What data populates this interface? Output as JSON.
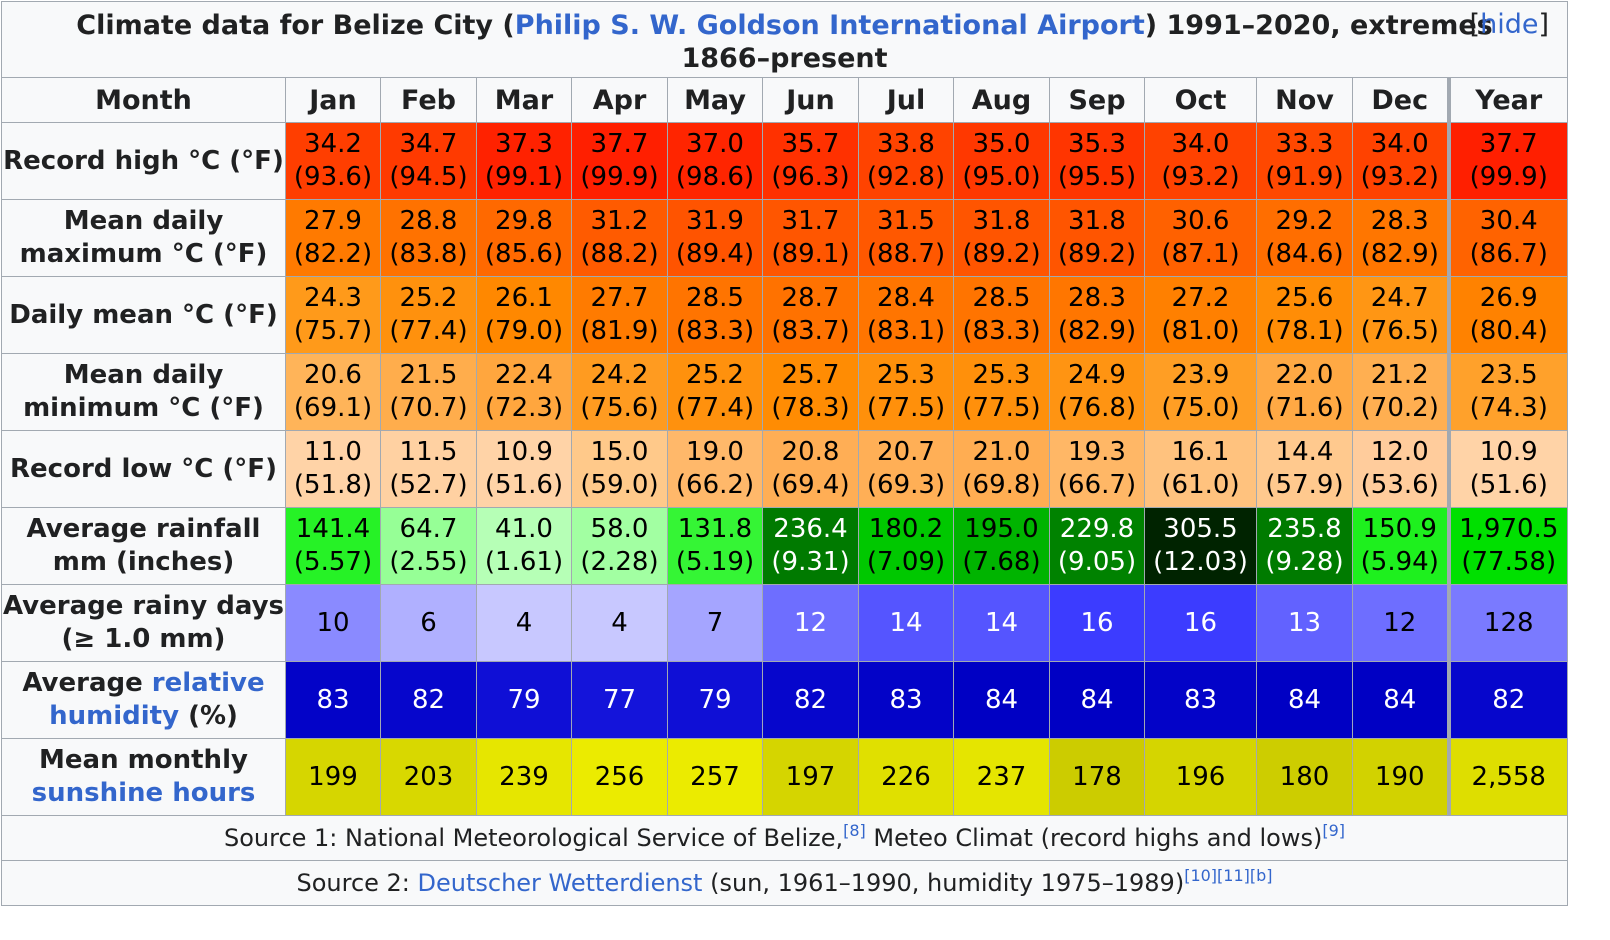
{
  "title_text": "Climate data for Belize City (",
  "title_link": "Philip S. W. Goldson International Airport",
  "title_suffix": ") 1991–2020, extremes 1866–present",
  "hide_open": "[",
  "hide_label": "hide",
  "hide_close": "]",
  "headers": {
    "month": "Month",
    "months": [
      "Jan",
      "Feb",
      "Mar",
      "Apr",
      "May",
      "Jun",
      "Jul",
      "Aug",
      "Sep",
      "Oct",
      "Nov",
      "Dec"
    ],
    "year": "Year"
  },
  "rows": [
    {
      "label": "Record high °C (°F)",
      "values": [
        [
          "34.2",
          "(93.6)"
        ],
        [
          "34.7",
          "(94.5)"
        ],
        [
          "37.3",
          "(99.1)"
        ],
        [
          "37.7",
          "(99.9)"
        ],
        [
          "37.0",
          "(98.6)"
        ],
        [
          "35.7",
          "(96.3)"
        ],
        [
          "33.8",
          "(92.8)"
        ],
        [
          "35.0",
          "(95.0)"
        ],
        [
          "35.3",
          "(95.5)"
        ],
        [
          "34.0",
          "(93.2)"
        ],
        [
          "33.3",
          "(91.9)"
        ],
        [
          "34.0",
          "(93.2)"
        ],
        [
          "37.7",
          "(99.9)"
        ]
      ],
      "bg": [
        "#ff3e00",
        "#ff3a00",
        "#ff2200",
        "#ff1f00",
        "#ff2500",
        "#ff3100",
        "#ff4300",
        "#ff3800",
        "#ff3500",
        "#ff4200",
        "#ff4800",
        "#ff4200",
        "#ff1f00"
      ],
      "fg": "#000000"
    },
    {
      "label": "Mean daily maximum °C (°F)",
      "values": [
        [
          "27.9",
          "(82.2)"
        ],
        [
          "28.8",
          "(83.8)"
        ],
        [
          "29.8",
          "(85.6)"
        ],
        [
          "31.2",
          "(88.2)"
        ],
        [
          "31.9",
          "(89.4)"
        ],
        [
          "31.7",
          "(89.1)"
        ],
        [
          "31.5",
          "(88.7)"
        ],
        [
          "31.8",
          "(89.2)"
        ],
        [
          "31.8",
          "(89.2)"
        ],
        [
          "30.6",
          "(87.1)"
        ],
        [
          "29.2",
          "(84.6)"
        ],
        [
          "28.3",
          "(82.9)"
        ],
        [
          "30.4",
          "(86.7)"
        ]
      ],
      "bg": [
        "#ff7a00",
        "#ff7200",
        "#ff6900",
        "#ff5b00",
        "#ff5400",
        "#ff5600",
        "#ff5800",
        "#ff5500",
        "#ff5500",
        "#ff6100",
        "#ff6e00",
        "#ff7600",
        "#ff6300"
      ],
      "fg": "#000000"
    },
    {
      "label": "Daily mean °C (°F)",
      "values": [
        [
          "24.3",
          "(75.7)"
        ],
        [
          "25.2",
          "(77.4)"
        ],
        [
          "26.1",
          "(79.0)"
        ],
        [
          "27.7",
          "(81.9)"
        ],
        [
          "28.5",
          "(83.3)"
        ],
        [
          "28.7",
          "(83.7)"
        ],
        [
          "28.4",
          "(83.1)"
        ],
        [
          "28.5",
          "(83.3)"
        ],
        [
          "28.3",
          "(82.9)"
        ],
        [
          "27.2",
          "(81.0)"
        ],
        [
          "25.6",
          "(78.1)"
        ],
        [
          "24.7",
          "(76.5)"
        ],
        [
          "26.9",
          "(80.4)"
        ]
      ],
      "bg": [
        "#ff9a1a",
        "#ff910d",
        "#ff8800",
        "#ff7b00",
        "#ff7400",
        "#ff7200",
        "#ff7500",
        "#ff7400",
        "#ff7600",
        "#ff8000",
        "#ff8d06",
        "#ff9614",
        "#ff8200"
      ],
      "fg": "#000000"
    },
    {
      "label": "Mean daily minimum °C (°F)",
      "values": [
        [
          "20.6",
          "(69.1)"
        ],
        [
          "21.5",
          "(70.7)"
        ],
        [
          "22.4",
          "(72.3)"
        ],
        [
          "24.2",
          "(75.6)"
        ],
        [
          "25.2",
          "(77.4)"
        ],
        [
          "25.7",
          "(78.3)"
        ],
        [
          "25.3",
          "(77.5)"
        ],
        [
          "25.3",
          "(77.5)"
        ],
        [
          "24.9",
          "(76.8)"
        ],
        [
          "23.9",
          "(75.0)"
        ],
        [
          "22.0",
          "(71.6)"
        ],
        [
          "21.2",
          "(70.2)"
        ],
        [
          "23.5",
          "(74.3)"
        ]
      ],
      "bg": [
        "#ffb459",
        "#ffad4c",
        "#ffa63e",
        "#ff9b20",
        "#ff910d",
        "#ff8c03",
        "#ff900b",
        "#ff900b",
        "#ff9412",
        "#ff9e24",
        "#ffa944",
        "#ffaf51",
        "#ffa12b"
      ],
      "fg": "#000000"
    },
    {
      "label": "Record low °C (°F)",
      "values": [
        [
          "11.0",
          "(51.8)"
        ],
        [
          "11.5",
          "(52.7)"
        ],
        [
          "10.9",
          "(51.6)"
        ],
        [
          "15.0",
          "(59.0)"
        ],
        [
          "19.0",
          "(66.2)"
        ],
        [
          "20.8",
          "(69.4)"
        ],
        [
          "20.7",
          "(69.3)"
        ],
        [
          "21.0",
          "(69.8)"
        ],
        [
          "19.3",
          "(66.7)"
        ],
        [
          "16.1",
          "(61.0)"
        ],
        [
          "14.4",
          "(57.9)"
        ],
        [
          "12.0",
          "(53.6)"
        ],
        [
          "10.9",
          "(51.6)"
        ]
      ],
      "bg": [
        "#ffd3a7",
        "#ffd1a2",
        "#ffd3a7",
        "#ffc98a",
        "#ffb86a",
        "#ffae55",
        "#ffaf56",
        "#ffad52",
        "#ffb766",
        "#ffc27e",
        "#ffc98e",
        "#ffcc9c",
        "#ffd3a7"
      ],
      "fg": "#000000"
    },
    {
      "label": "Average rainfall mm (inches)",
      "values": [
        [
          "141.4",
          "(5.57)"
        ],
        [
          "64.7",
          "(2.55)"
        ],
        [
          "41.0",
          "(1.61)"
        ],
        [
          "58.0",
          "(2.28)"
        ],
        [
          "131.8",
          "(5.19)"
        ],
        [
          "236.4",
          "(9.31)"
        ],
        [
          "180.2",
          "(7.09)"
        ],
        [
          "195.0",
          "(7.68)"
        ],
        [
          "229.8",
          "(9.05)"
        ],
        [
          "305.5",
          "(12.03)"
        ],
        [
          "235.8",
          "(9.28)"
        ],
        [
          "150.9",
          "(5.94)"
        ],
        [
          "1,970.5",
          "(77.58)"
        ]
      ],
      "bg": [
        "#26f226",
        "#96ff96",
        "#b6ffb6",
        "#a2ffa2",
        "#35f535",
        "#007a00",
        "#00c800",
        "#00b400",
        "#008200",
        "#002300",
        "#007b00",
        "#1ef01e",
        "#00e000"
      ],
      "fg_list": [
        "#000000",
        "#000000",
        "#000000",
        "#000000",
        "#000000",
        "#ffffff",
        "#000000",
        "#000000",
        "#ffffff",
        "#ffffff",
        "#ffffff",
        "#000000",
        "#000000"
      ]
    },
    {
      "label": "Average rainy days (≥ 1.0 mm)",
      "values": [
        [
          "10"
        ],
        [
          "6"
        ],
        [
          "4"
        ],
        [
          "4"
        ],
        [
          "7"
        ],
        [
          "12"
        ],
        [
          "14"
        ],
        [
          "14"
        ],
        [
          "16"
        ],
        [
          "16"
        ],
        [
          "13"
        ],
        [
          "12"
        ],
        [
          "128"
        ]
      ],
      "bg": [
        "#8a8aff",
        "#b0b0ff",
        "#c8c8ff",
        "#c8c8ff",
        "#a5a5ff",
        "#6e6eff",
        "#5555ff",
        "#5555ff",
        "#3c3cff",
        "#3c3cff",
        "#6262ff",
        "#6e6eff",
        "#7a7aff"
      ],
      "fg_list": [
        "#000000",
        "#000000",
        "#000000",
        "#000000",
        "#000000",
        "#ffffff",
        "#ffffff",
        "#ffffff",
        "#ffffff",
        "#ffffff",
        "#ffffff",
        "#000000",
        "#000000"
      ]
    },
    {
      "label_pre": "Average ",
      "label_link": "relative humidity",
      "label_post": " (%)",
      "values": [
        [
          "83"
        ],
        [
          "82"
        ],
        [
          "79"
        ],
        [
          "77"
        ],
        [
          "79"
        ],
        [
          "82"
        ],
        [
          "83"
        ],
        [
          "84"
        ],
        [
          "84"
        ],
        [
          "83"
        ],
        [
          "84"
        ],
        [
          "84"
        ],
        [
          "82"
        ]
      ],
      "bg": [
        "#0303c8",
        "#0606cc",
        "#0f0fd6",
        "#1414da",
        "#0f0fd6",
        "#0606cc",
        "#0303c8",
        "#0000c4",
        "#0000c4",
        "#0303c8",
        "#0000c4",
        "#0000c4",
        "#0606cc"
      ],
      "fg": "#ffffff"
    },
    {
      "label_pre": "Mean monthly ",
      "label_link": "sunshine hours",
      "label_post": "",
      "values": [
        [
          "199"
        ],
        [
          "203"
        ],
        [
          "239"
        ],
        [
          "256"
        ],
        [
          "257"
        ],
        [
          "197"
        ],
        [
          "226"
        ],
        [
          "237"
        ],
        [
          "178"
        ],
        [
          "196"
        ],
        [
          "180"
        ],
        [
          "190"
        ],
        [
          "2,558"
        ]
      ],
      "bg": [
        "#d6d600",
        "#d8d800",
        "#e6e600",
        "#ebeb00",
        "#ebeb00",
        "#d5d500",
        "#e0e000",
        "#e5e500",
        "#cccc00",
        "#d5d500",
        "#cdcd00",
        "#d2d200",
        "#dede00"
      ],
      "fg": "#000000"
    }
  ],
  "source1": {
    "pre": "Source 1: National Meteorological Service of Belize,",
    "ref1": "[8]",
    "mid": " Meteo Climat (record highs and lows)",
    "ref2": "[9]"
  },
  "source2": {
    "pre": "Source 2: ",
    "link": "Deutscher Wetterdienst",
    "mid": " (sun, 1961–1990, humidity 1975–1989)",
    "refs": "[10][11][b]"
  }
}
